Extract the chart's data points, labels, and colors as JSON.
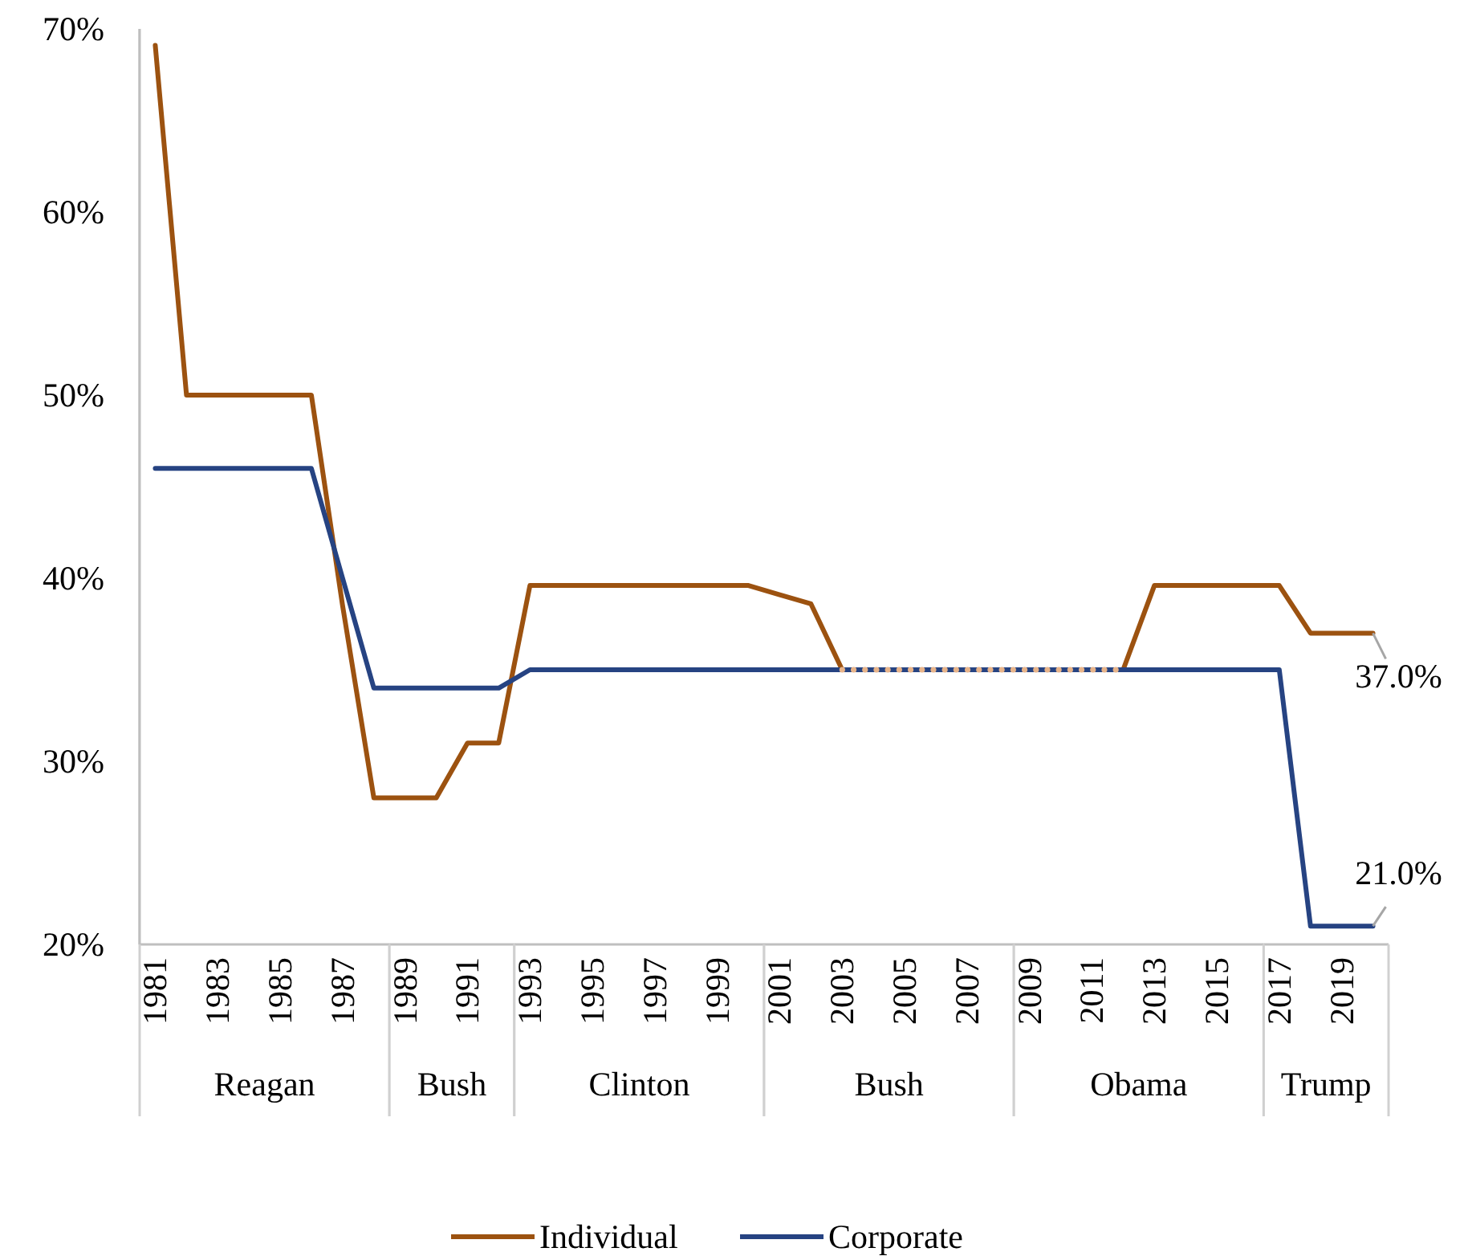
{
  "chart_data": {
    "type": "line",
    "x": [
      1981,
      1982,
      1983,
      1984,
      1985,
      1986,
      1987,
      1988,
      1989,
      1990,
      1991,
      1992,
      1993,
      1994,
      1995,
      1996,
      1997,
      1998,
      1999,
      2000,
      2001,
      2002,
      2003,
      2004,
      2005,
      2006,
      2007,
      2008,
      2009,
      2010,
      2011,
      2012,
      2013,
      2014,
      2015,
      2016,
      2017,
      2018,
      2019,
      2020
    ],
    "series": [
      {
        "name": "Individual",
        "color": "#9c5210",
        "values": [
          69.1,
          50,
          50,
          50,
          50,
          50,
          38.5,
          28,
          28,
          28,
          31,
          31,
          39.6,
          39.6,
          39.6,
          39.6,
          39.6,
          39.6,
          39.6,
          39.6,
          39.1,
          38.6,
          35,
          null,
          null,
          null,
          null,
          null,
          null,
          null,
          null,
          35,
          39.6,
          39.6,
          39.6,
          39.6,
          39.6,
          37,
          37,
          37
        ]
      },
      {
        "name": "Corporate",
        "color": "#264382",
        "values": [
          46,
          46,
          46,
          46,
          46,
          46,
          40,
          34,
          34,
          34,
          34,
          34,
          35,
          35,
          35,
          35,
          35,
          35,
          35,
          35,
          35,
          35,
          35,
          35,
          35,
          35,
          35,
          35,
          35,
          35,
          35,
          35,
          35,
          35,
          35,
          35,
          35,
          21,
          21,
          21
        ]
      },
      {
        "color": "#e8b48a",
        "line_style": "dotted",
        "values": [
          null,
          null,
          null,
          null,
          null,
          null,
          null,
          null,
          null,
          null,
          null,
          null,
          null,
          null,
          null,
          null,
          null,
          null,
          null,
          null,
          null,
          null,
          35,
          35,
          35,
          35,
          35,
          35,
          35,
          35,
          35,
          35,
          null,
          null,
          null,
          null,
          null,
          null,
          null,
          null
        ]
      }
    ],
    "xlim": [
      1980.5,
      2020.5
    ],
    "xticks": [
      1981,
      1983,
      1985,
      1987,
      1989,
      1991,
      1993,
      1995,
      1997,
      1999,
      2001,
      2003,
      2005,
      2007,
      2009,
      2011,
      2013,
      2015,
      2017,
      2019
    ],
    "ylim": [
      20,
      70
    ],
    "yticks": [
      {
        "value": 20,
        "label": "20%"
      },
      {
        "value": 30,
        "label": "30%"
      },
      {
        "value": 40,
        "label": "40%"
      },
      {
        "value": 50,
        "label": "50%"
      },
      {
        "value": 60,
        "label": "60%"
      },
      {
        "value": 70,
        "label": "70%"
      }
    ],
    "bands": [
      {
        "axis": "x",
        "from": 1980.5,
        "to": 1988.5,
        "label": "Reagan"
      },
      {
        "axis": "x",
        "from": 1988.5,
        "to": 1992.5,
        "label": "Bush"
      },
      {
        "axis": "x",
        "from": 1992.5,
        "to": 2000.5,
        "label": "Clinton"
      },
      {
        "axis": "x",
        "from": 2000.5,
        "to": 2008.5,
        "label": "Bush"
      },
      {
        "axis": "x",
        "from": 2008.5,
        "to": 2016.5,
        "label": "Obama"
      },
      {
        "axis": "x",
        "from": 2016.5,
        "to": 2020.5,
        "label": "Trump"
      }
    ],
    "annotations": [
      {
        "text": "37.0%",
        "x": 2020,
        "y": 37
      },
      {
        "text": "21.0%",
        "x": 2020,
        "y": 21
      }
    ],
    "grid": false,
    "legend": "bottom",
    "marker": "none",
    "line_style": "solid"
  }
}
